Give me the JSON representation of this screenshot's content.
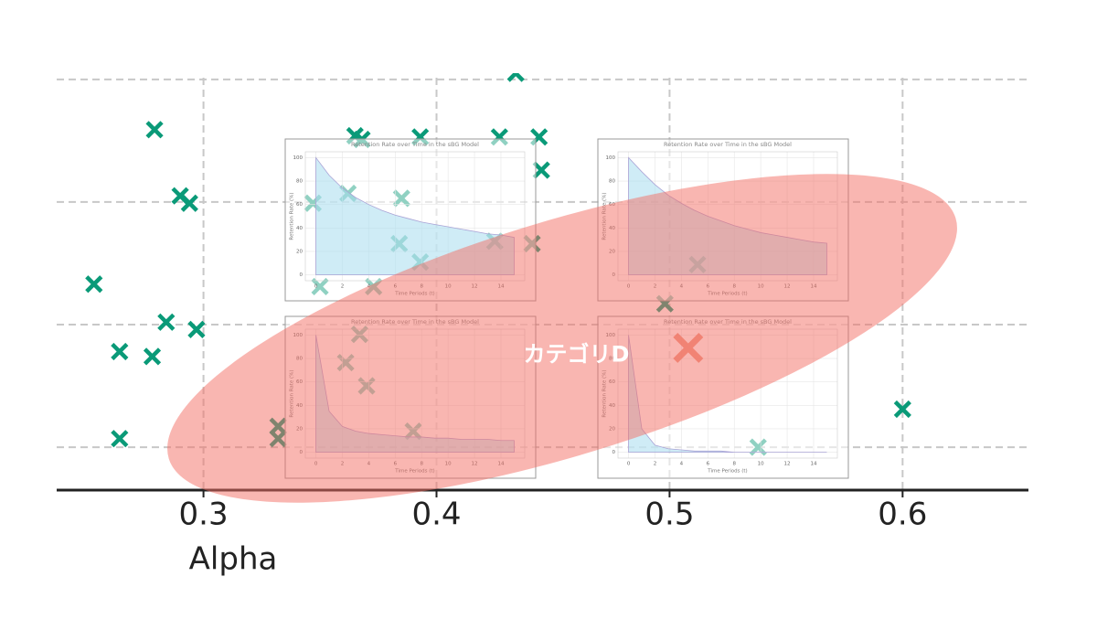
{
  "chart_data": [
    {
      "type": "scatter",
      "xlabel": "Alpha",
      "color": "#0a9a78",
      "x": [
        0.279,
        0.29,
        0.294,
        0.253,
        0.284,
        0.264,
        0.278,
        0.297,
        0.264,
        0.365,
        0.368,
        0.393,
        0.427,
        0.444,
        0.445,
        0.434,
        0.347,
        0.362,
        0.385,
        0.384,
        0.393,
        0.425,
        0.441,
        0.35,
        0.373,
        0.512,
        0.498,
        0.367,
        0.361,
        0.37,
        0.39,
        0.332,
        0.332,
        0.538,
        0.6
      ],
      "y": [
        3.59,
        3.05,
        2.99,
        2.33,
        2.02,
        1.78,
        1.74,
        1.96,
        1.07,
        3.54,
        3.51,
        3.53,
        3.53,
        3.53,
        3.26,
        4.05,
        2.99,
        3.07,
        3.03,
        2.66,
        2.51,
        2.68,
        2.66,
        2.31,
        2.31,
        2.49,
        2.17,
        1.92,
        1.69,
        1.5,
        1.13,
        1.17,
        1.07,
        1.0,
        1.31
      ],
      "xlim": [
        0.237,
        0.654
      ],
      "ylim": [
        0.65,
        4.2
      ],
      "xticks": [
        0.3,
        0.4,
        0.5,
        0.6
      ],
      "yticks": [
        1,
        2,
        3,
        4
      ],
      "y_tick_labels_shown": false,
      "grid": true,
      "highlight": {
        "x": 0.508,
        "y": 1.81,
        "color": "#f07b6a"
      },
      "annotation": {
        "text": "カテゴリD",
        "x": 0.46,
        "y": 1.9
      }
    },
    {
      "type": "area",
      "title": "Retention Rate over Time in the sBG Model",
      "xlabel": "Time Periods (t)",
      "ylabel": "Retention Rate (%)",
      "x": [
        0,
        1,
        2,
        3,
        4,
        5,
        6,
        7,
        8,
        9,
        10,
        11,
        12,
        13,
        14,
        15
      ],
      "values": [
        100,
        85,
        74,
        66,
        60,
        55,
        51,
        48,
        45,
        43,
        41,
        39,
        37,
        35,
        34,
        32
      ],
      "xlim": [
        -0.8,
        15.8
      ],
      "ylim": [
        -5,
        105
      ],
      "xticks": [
        0,
        2,
        4,
        6,
        8,
        10,
        12,
        14
      ],
      "yticks": [
        0,
        20,
        40,
        60,
        80,
        100
      ],
      "color": "#a8dcef"
    },
    {
      "type": "area",
      "title": "Retention Rate over Time in the sBG Model",
      "xlabel": "Time Periods (t)",
      "ylabel": "Retention Rate (%)",
      "x": [
        0,
        1,
        2,
        3,
        4,
        5,
        6,
        7,
        8,
        9,
        10,
        11,
        12,
        13,
        14,
        15
      ],
      "values": [
        100,
        88,
        77,
        68,
        61,
        55,
        50,
        46,
        42,
        39,
        36,
        34,
        32,
        30,
        28,
        27
      ],
      "xlim": [
        -0.8,
        15.8
      ],
      "ylim": [
        -5,
        105
      ],
      "xticks": [
        0,
        2,
        4,
        6,
        8,
        10,
        12,
        14
      ],
      "yticks": [
        0,
        20,
        40,
        60,
        80,
        100
      ],
      "color": "#a8dcef"
    },
    {
      "type": "area",
      "title": "Retention Rate over Time in the sBG Model",
      "xlabel": "Time Periods (t)",
      "ylabel": "Retention Rate (%)",
      "x": [
        0,
        1,
        2,
        3,
        4,
        5,
        6,
        7,
        8,
        9,
        10,
        11,
        12,
        13,
        14,
        15
      ],
      "values": [
        100,
        35,
        22,
        18,
        16,
        15,
        14,
        13,
        13,
        12,
        12,
        11,
        11,
        11,
        10,
        10
      ],
      "xlim": [
        -0.8,
        15.8
      ],
      "ylim": [
        -5,
        105
      ],
      "xticks": [
        0,
        2,
        4,
        6,
        8,
        10,
        12,
        14
      ],
      "yticks": [
        0,
        20,
        40,
        60,
        80,
        100
      ],
      "color": "#a8dcef"
    },
    {
      "type": "area",
      "title": "Retention Rate over Time in the sBG Model",
      "xlabel": "Time Periods (t)",
      "ylabel": "Retention Rate (%)",
      "x": [
        0,
        1,
        2,
        3,
        4,
        5,
        6,
        7,
        8,
        9,
        10,
        11,
        12,
        13,
        14,
        15
      ],
      "values": [
        100,
        20,
        6,
        3,
        2,
        1,
        1,
        1,
        0,
        0,
        0,
        0,
        0,
        0,
        0,
        0
      ],
      "xlim": [
        -0.8,
        15.8
      ],
      "ylim": [
        -5,
        105
      ],
      "xticks": [
        0,
        2,
        4,
        6,
        8,
        10,
        12,
        14
      ],
      "yticks": [
        0,
        20,
        40,
        60,
        80,
        100
      ],
      "color": "#a8dcef"
    }
  ]
}
